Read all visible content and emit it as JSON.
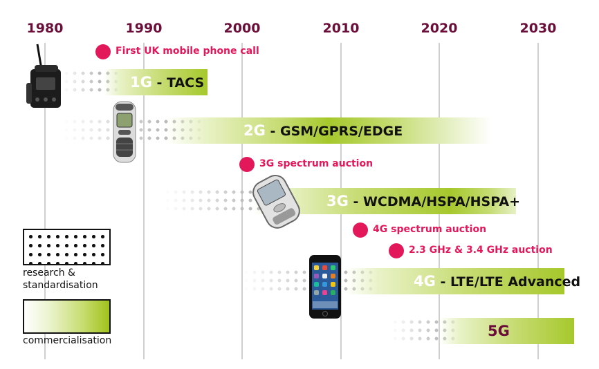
{
  "years": [
    "1980",
    "1990",
    "2000",
    "2010",
    "2020",
    "2030"
  ],
  "generations": [
    {
      "g": "1G",
      "name": " - TACS"
    },
    {
      "g": "2G",
      "name": " - GSM/GPRS/EDGE"
    },
    {
      "g": "3G",
      "name": " - WCDMA/HSPA/HSPA+"
    },
    {
      "g": "4G",
      "name": " - LTE/LTE Advanced"
    },
    {
      "g": "5G",
      "name": ""
    }
  ],
  "events": [
    {
      "text": "First UK mobile phone call"
    },
    {
      "text": "3G spectrum auction"
    },
    {
      "text": "4G spectrum auction"
    },
    {
      "text": "2.3 GHz & 3.4 GHz auction"
    }
  ],
  "legend": {
    "research": "research & standardisation",
    "commercial": "commercialisation"
  },
  "colors": {
    "year": "#6b0f3a",
    "event": "#e2185b",
    "green": "#a6c82c"
  },
  "icons": {
    "phone1": "car-phone-icon",
    "phone2": "nokia-phone-icon",
    "phone3": "smartphone-3g-icon",
    "phone4": "iphone-icon"
  }
}
